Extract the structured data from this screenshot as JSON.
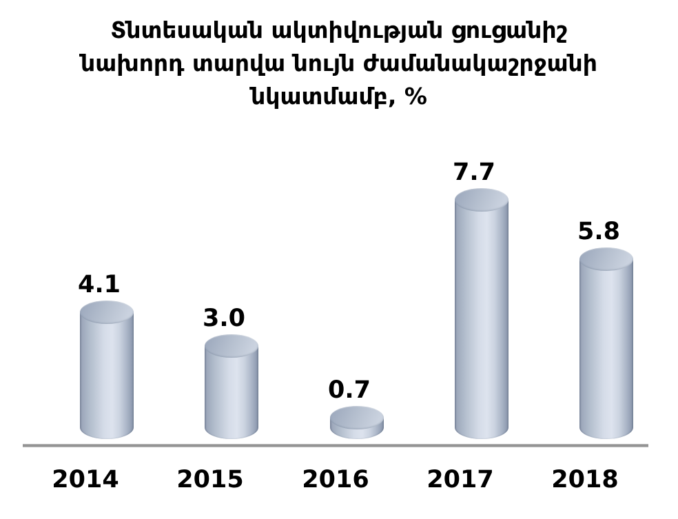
{
  "chart_data": {
    "type": "bar",
    "subtype": "3d-cylinder",
    "title": "Տնտեսական ակտիվության ցուցանիշ նախորդ տարվա նույն ժամանակաշրջանի նկատմամբ, %",
    "title_lines": [
      "Տնտեսական ակտիվության ցուցանիշ",
      "նախորդ տարվա նույն ժամանակաշրջանի",
      "նկատմամբ, %"
    ],
    "categories": [
      "2014",
      "2015",
      "2016",
      "2017",
      "2018"
    ],
    "values": [
      4.1,
      3.0,
      0.7,
      7.7,
      5.8
    ],
    "value_labels": [
      "4.1",
      "3.0",
      "0.7",
      "7.7",
      "5.8"
    ],
    "xlabel": "",
    "ylabel": "",
    "ylim": [
      0,
      8.6
    ],
    "grid": false,
    "legend": false,
    "layout_hints": {
      "value_labels_position": "above-bar",
      "axis_shown": "x-only"
    },
    "colors": {
      "background": "#FFFFFF",
      "text": "#000000",
      "bar_edge": "#8C97AB",
      "bar_highlight": "#DDE3EE",
      "bar_top_dark": "#9EAABE",
      "bar_top_light": "#CAD2DF",
      "axis_line": "#979797"
    }
  }
}
